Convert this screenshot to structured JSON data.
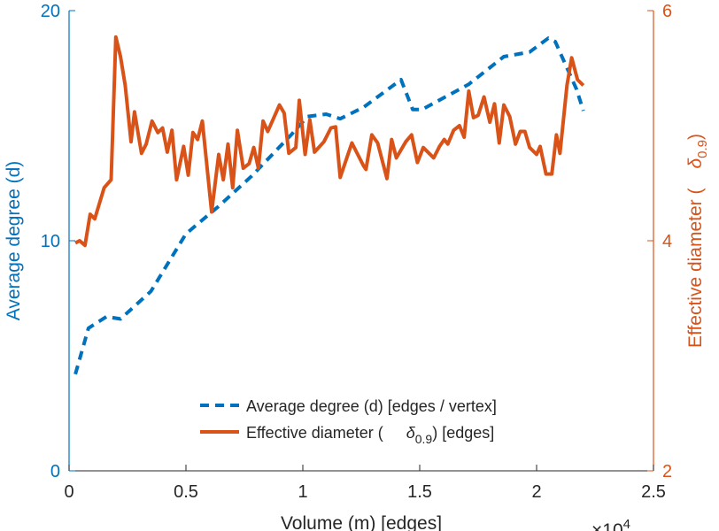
{
  "chart_data": {
    "type": "line",
    "title": "",
    "xlabel": "Volume (m) [edges]",
    "x_multiplier": "×10",
    "x_multiplier_exp": "4",
    "ylabel_left": "Average degree (d)",
    "ylabel_right": "Effective diameter (",
    "ylabel_right_sym": "δ",
    "ylabel_right_sub": "0.9",
    "ylabel_right_end": ")",
    "xlim": [
      0,
      2.5
    ],
    "ylim_left": [
      0,
      20
    ],
    "ylim_right": [
      2,
      6
    ],
    "xticks": [
      "0",
      "0.5",
      "1",
      "1.5",
      "2",
      "2.5"
    ],
    "xtick_values": [
      0,
      0.5,
      1,
      1.5,
      2,
      2.5
    ],
    "yticks_left": [
      "0",
      "10",
      "20"
    ],
    "ytick_values_left": [
      0,
      10,
      20
    ],
    "yticks_right": [
      "2",
      "4",
      "6"
    ],
    "ytick_values_right": [
      2,
      4,
      6
    ],
    "colors": {
      "left": "#0072BD",
      "right": "#D95319",
      "axis": "#262626"
    },
    "legend_position": "bottom-right",
    "legend": [
      {
        "label": "Average degree (d) [edges / vertex]"
      },
      {
        "label_pre": "Effective diameter (",
        "label_sym": "δ",
        "label_sub": "0.9",
        "label_post": ") [edges]"
      }
    ],
    "series": [
      {
        "name": "Average degree (d) [edges / vertex]",
        "axis": "left",
        "style": "dashed",
        "x": [
          0.027,
          0.083,
          0.16,
          0.22,
          0.35,
          0.5,
          0.64,
          0.78,
          0.95,
          1.02,
          1.1,
          1.16,
          1.26,
          1.42,
          1.47,
          1.51,
          1.71,
          1.86,
          1.97,
          2.05,
          2.08,
          2.17,
          2.2
        ],
        "y": [
          4.2,
          6.2,
          6.7,
          6.6,
          7.8,
          10.3,
          11.5,
          12.8,
          14.6,
          15.4,
          15.5,
          15.3,
          15.8,
          17.0,
          15.7,
          15.7,
          16.8,
          18.0,
          18.2,
          18.8,
          18.65,
          16.6,
          15.65
        ]
      },
      {
        "name": "Effective diameter (δ0.9) [edges]",
        "axis": "right",
        "style": "solid",
        "x": [
          0.027,
          0.045,
          0.068,
          0.09,
          0.11,
          0.15,
          0.18,
          0.2,
          0.22,
          0.24,
          0.265,
          0.28,
          0.31,
          0.33,
          0.355,
          0.38,
          0.4,
          0.42,
          0.44,
          0.46,
          0.49,
          0.51,
          0.53,
          0.55,
          0.57,
          0.61,
          0.64,
          0.66,
          0.68,
          0.7,
          0.72,
          0.745,
          0.77,
          0.79,
          0.81,
          0.83,
          0.85,
          0.9,
          0.92,
          0.94,
          0.97,
          0.985,
          1.01,
          1.03,
          1.05,
          1.09,
          1.12,
          1.14,
          1.16,
          1.21,
          1.26,
          1.27,
          1.295,
          1.32,
          1.36,
          1.38,
          1.4,
          1.44,
          1.465,
          1.49,
          1.515,
          1.56,
          1.585,
          1.605,
          1.62,
          1.645,
          1.67,
          1.69,
          1.71,
          1.73,
          1.75,
          1.775,
          1.8,
          1.82,
          1.84,
          1.86,
          1.885,
          1.91,
          1.93,
          1.95,
          1.97,
          2.0,
          2.015,
          2.04,
          2.065,
          2.085,
          2.1,
          2.13,
          2.15,
          2.175,
          2.2
        ],
        "y": [
          3.98,
          4.0,
          3.96,
          4.23,
          4.19,
          4.46,
          4.53,
          5.77,
          5.6,
          5.35,
          4.86,
          5.12,
          4.76,
          4.84,
          5.04,
          4.94,
          4.98,
          4.77,
          4.96,
          4.53,
          4.82,
          4.57,
          4.94,
          4.88,
          5.04,
          4.25,
          4.75,
          4.53,
          4.84,
          4.46,
          4.96,
          4.63,
          4.67,
          4.81,
          4.63,
          5.04,
          4.95,
          5.18,
          5.11,
          4.76,
          4.81,
          5.22,
          4.75,
          5.05,
          4.77,
          4.86,
          4.98,
          4.99,
          4.55,
          4.85,
          4.65,
          4.62,
          4.92,
          4.85,
          4.54,
          4.88,
          4.72,
          4.86,
          4.92,
          4.68,
          4.81,
          4.72,
          4.82,
          4.88,
          4.84,
          4.96,
          5.0,
          4.9,
          5.3,
          5.07,
          5.09,
          5.25,
          5.03,
          5.19,
          4.85,
          5.18,
          5.08,
          4.84,
          4.95,
          4.95,
          4.81,
          4.75,
          4.82,
          4.58,
          4.58,
          4.92,
          4.76,
          5.35,
          5.59,
          5.4,
          5.35
        ]
      }
    ]
  }
}
